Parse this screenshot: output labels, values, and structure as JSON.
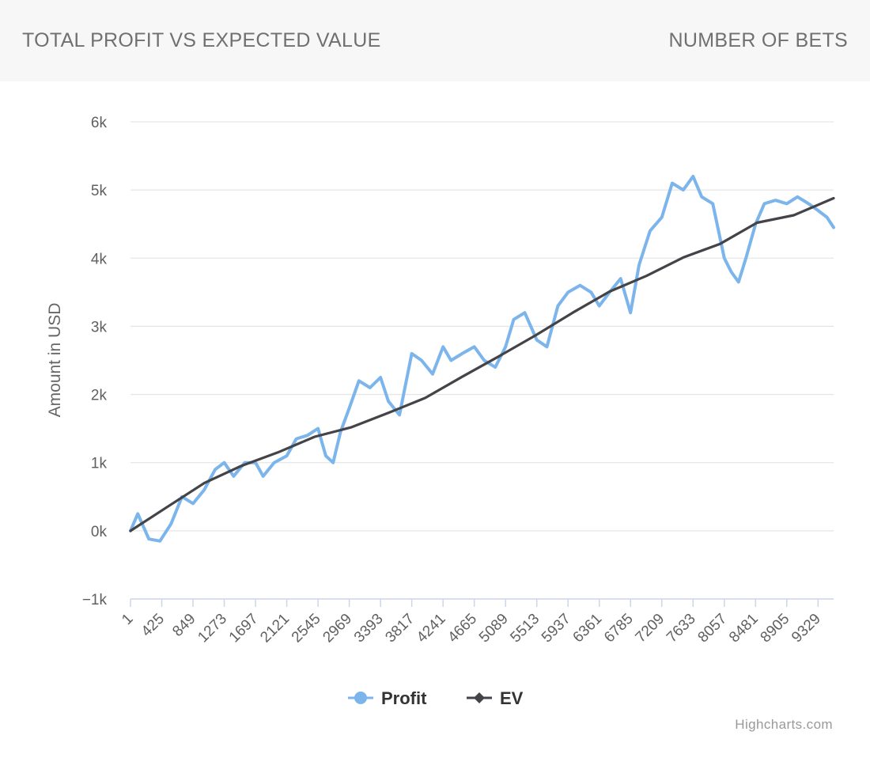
{
  "header": {
    "title": "TOTAL PROFIT VS EXPECTED VALUE",
    "subtitle": "NUMBER OF BETS"
  },
  "credits": "Highcharts.com",
  "colors": {
    "profit": "#7cb5ec",
    "ev": "#434348",
    "grid": "#e6e6e6",
    "axis": "#ccd6eb"
  },
  "chart_data": {
    "type": "line",
    "ylabel": "Amount in USD",
    "xlabel": "",
    "ylim": [
      -1000,
      6000
    ],
    "yticks": [
      -1000,
      0,
      1000,
      2000,
      3000,
      4000,
      5000,
      6000
    ],
    "ytick_labels": [
      "−1k",
      "0k",
      "1k",
      "2k",
      "3k",
      "4k",
      "5k",
      "6k"
    ],
    "xlim": [
      1,
      9540
    ],
    "xticks": [
      1,
      425,
      849,
      1273,
      1697,
      2121,
      2545,
      2969,
      3393,
      3817,
      4241,
      4665,
      5089,
      5513,
      5937,
      6361,
      6785,
      7209,
      7633,
      8057,
      8481,
      8905,
      9329
    ],
    "legend_position": "bottom-center",
    "grid": true,
    "series": [
      {
        "name": "Profit",
        "marker": "circle",
        "x": [
          1,
          100,
          250,
          400,
          550,
          700,
          850,
          1000,
          1150,
          1273,
          1400,
          1550,
          1697,
          1800,
          1950,
          2121,
          2250,
          2400,
          2545,
          2650,
          2750,
          2850,
          2969,
          3100,
          3250,
          3393,
          3500,
          3650,
          3817,
          3950,
          4100,
          4241,
          4350,
          4500,
          4665,
          4800,
          4950,
          5089,
          5200,
          5350,
          5513,
          5650,
          5800,
          5937,
          6100,
          6250,
          6361,
          6500,
          6650,
          6785,
          6900,
          7050,
          7209,
          7350,
          7500,
          7633,
          7750,
          7900,
          8057,
          8150,
          8250,
          8350,
          8481,
          8600,
          8750,
          8905,
          9050,
          9200,
          9329,
          9450,
          9540
        ],
        "y": [
          0,
          250,
          -120,
          -150,
          100,
          500,
          400,
          600,
          900,
          1000,
          800,
          1000,
          1000,
          800,
          1000,
          1100,
          1350,
          1400,
          1500,
          1100,
          1000,
          1450,
          1800,
          2200,
          2100,
          2250,
          1900,
          1700,
          2600,
          2500,
          2300,
          2700,
          2500,
          2600,
          2700,
          2500,
          2400,
          2700,
          3100,
          3200,
          2800,
          2700,
          3300,
          3500,
          3600,
          3500,
          3300,
          3500,
          3700,
          3200,
          3900,
          4400,
          4600,
          5100,
          5000,
          5200,
          4900,
          4800,
          4000,
          3800,
          3650,
          4000,
          4500,
          4800,
          4850,
          4800,
          4900,
          4800,
          4700,
          4600,
          4450
        ]
      },
      {
        "name": "EV",
        "marker": "diamond",
        "x": [
          1,
          500,
          1000,
          1500,
          2000,
          2500,
          3000,
          3500,
          4000,
          4500,
          5000,
          5500,
          6000,
          6500,
          7000,
          7500,
          8000,
          8500,
          9000,
          9540
        ],
        "y": [
          0,
          350,
          700,
          950,
          1150,
          1380,
          1520,
          1730,
          1950,
          2260,
          2560,
          2870,
          3200,
          3510,
          3740,
          4010,
          4210,
          4520,
          4630,
          4880
        ]
      }
    ]
  }
}
